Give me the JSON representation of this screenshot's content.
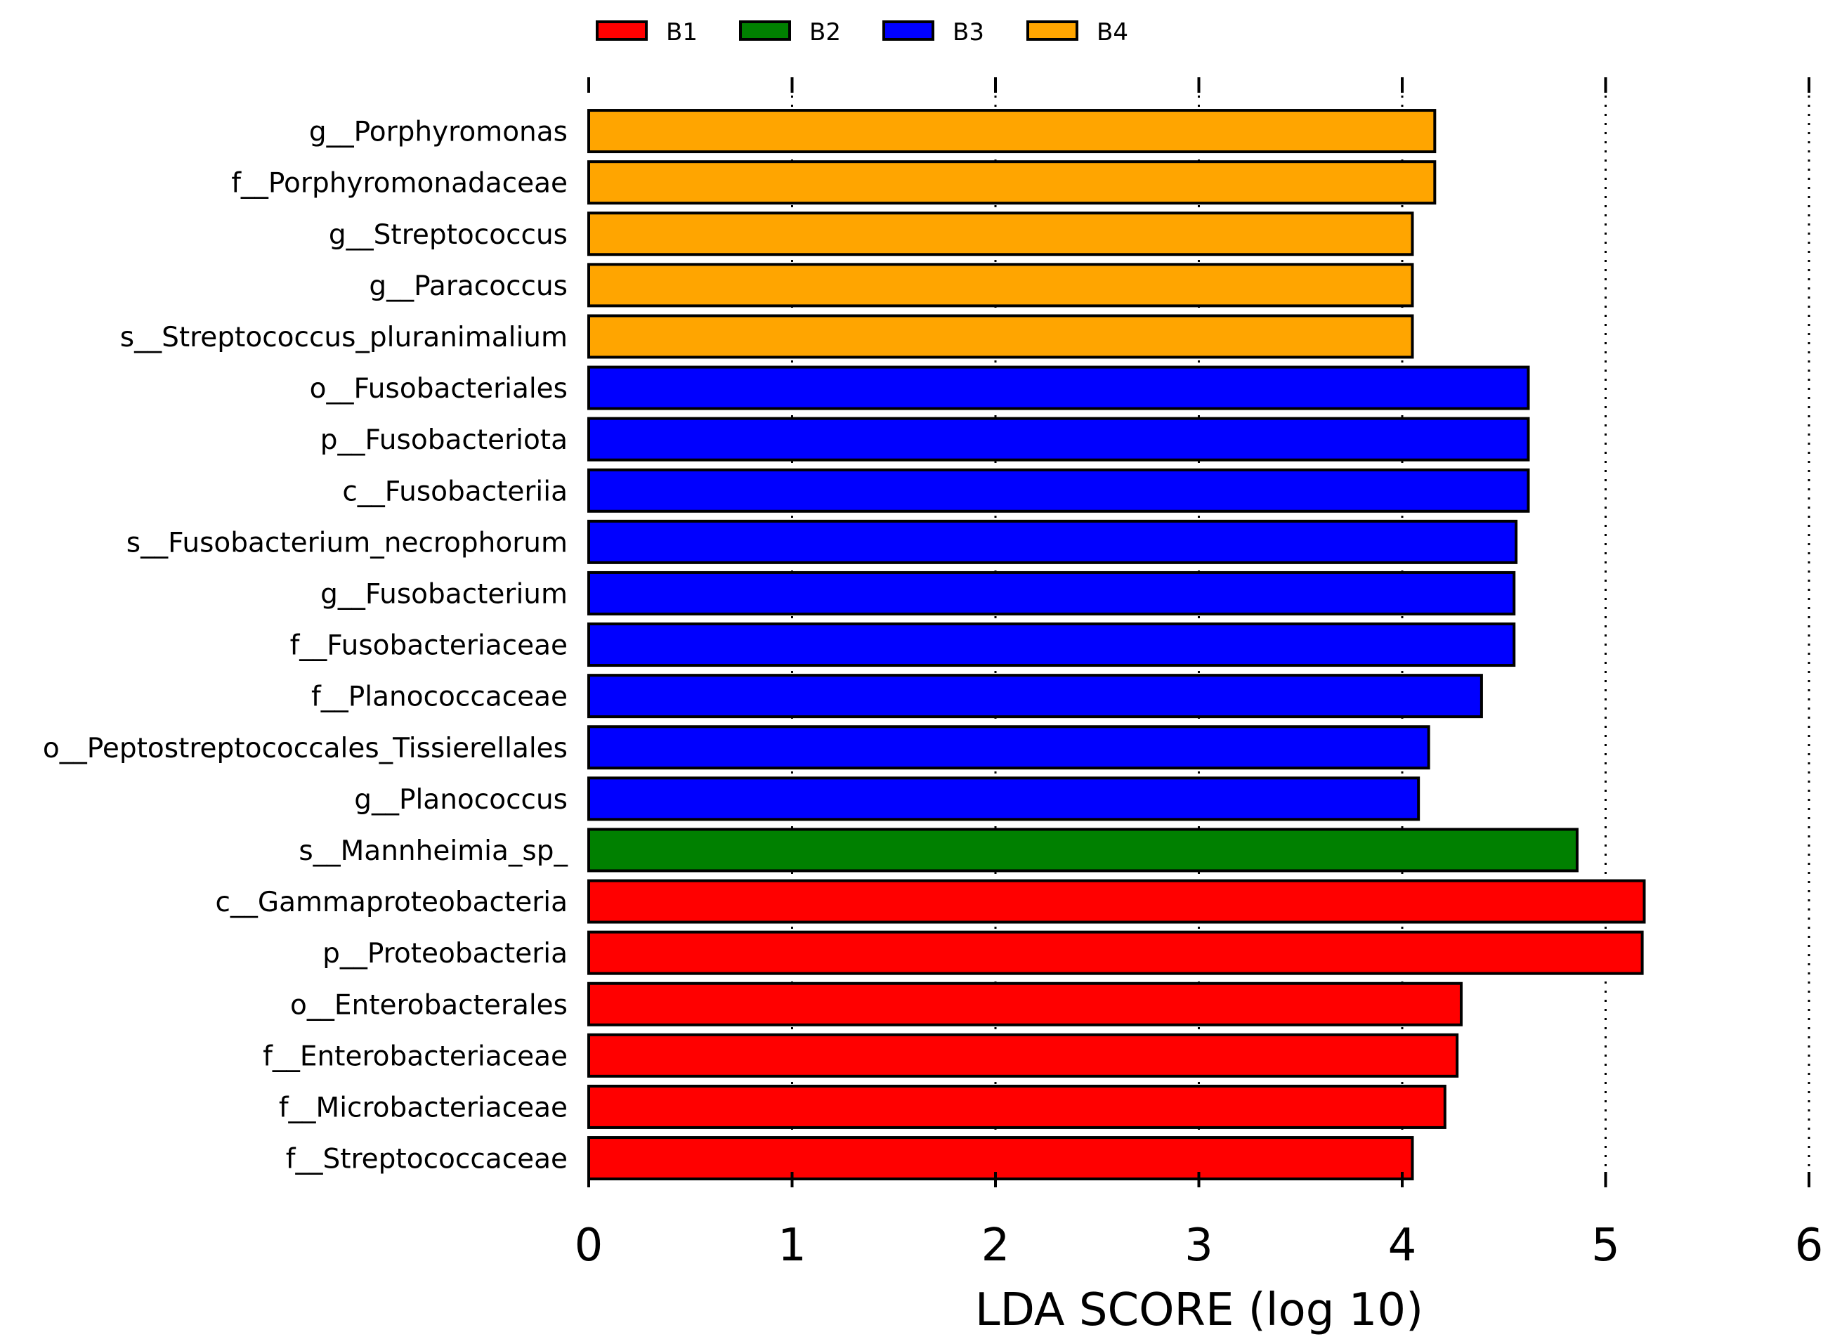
{
  "chart_data": {
    "type": "bar",
    "orientation": "horizontal",
    "xlabel": "LDA SCORE (log 10)",
    "ylabel": "",
    "xlim": [
      0,
      6
    ],
    "xticks": [
      "0",
      "1",
      "2",
      "3",
      "4",
      "5",
      "6"
    ],
    "grid": "vertical dotted",
    "legend_position": "top",
    "legend": [
      {
        "name": "B1",
        "color": "#ff0000"
      },
      {
        "name": "B2",
        "color": "#008000"
      },
      {
        "name": "B3",
        "color": "#0000ff"
      },
      {
        "name": "B4",
        "color": "#ffa500"
      }
    ],
    "bars": [
      {
        "label": "g__Porphyromonas",
        "value": 4.16,
        "group": "B4"
      },
      {
        "label": "f__Porphyromonadaceae",
        "value": 4.16,
        "group": "B4"
      },
      {
        "label": "g__Streptococcus",
        "value": 4.05,
        "group": "B4"
      },
      {
        "label": "g__Paracoccus",
        "value": 4.05,
        "group": "B4"
      },
      {
        "label": "s__Streptococcus_pluranimalium",
        "value": 4.05,
        "group": "B4"
      },
      {
        "label": "o__Fusobacteriales",
        "value": 4.62,
        "group": "B3"
      },
      {
        "label": "p__Fusobacteriota",
        "value": 4.62,
        "group": "B3"
      },
      {
        "label": "c__Fusobacteriia",
        "value": 4.62,
        "group": "B3"
      },
      {
        "label": "s__Fusobacterium_necrophorum",
        "value": 4.56,
        "group": "B3"
      },
      {
        "label": "g__Fusobacterium",
        "value": 4.55,
        "group": "B3"
      },
      {
        "label": "f__Fusobacteriaceae",
        "value": 4.55,
        "group": "B3"
      },
      {
        "label": "f__Planococcaceae",
        "value": 4.39,
        "group": "B3"
      },
      {
        "label": "o__Peptostreptococcales_Tissierellales",
        "value": 4.13,
        "group": "B3"
      },
      {
        "label": "g__Planococcus",
        "value": 4.08,
        "group": "B3"
      },
      {
        "label": "s__Mannheimia_sp_",
        "value": 4.86,
        "group": "B2"
      },
      {
        "label": "c__Gammaproteobacteria",
        "value": 5.19,
        "group": "B1"
      },
      {
        "label": "p__Proteobacteria",
        "value": 5.18,
        "group": "B1"
      },
      {
        "label": "o__Enterobacterales",
        "value": 4.29,
        "group": "B1"
      },
      {
        "label": "f__Enterobacteriaceae",
        "value": 4.27,
        "group": "B1"
      },
      {
        "label": "f__Microbacteriaceae",
        "value": 4.21,
        "group": "B1"
      },
      {
        "label": "f__Streptococcaceae",
        "value": 4.05,
        "group": "B1"
      }
    ]
  }
}
